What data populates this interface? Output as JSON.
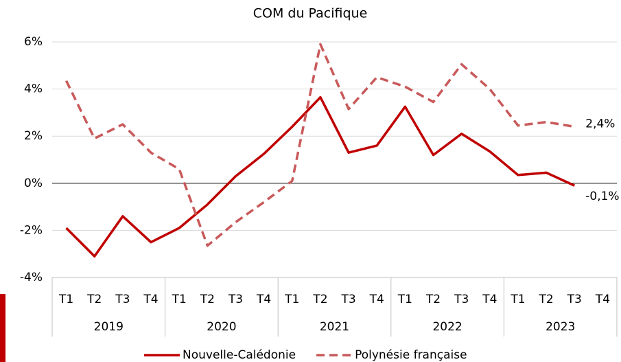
{
  "chart_data": {
    "type": "line",
    "title": "COM du Pacifique",
    "categories": [
      "T1",
      "T2",
      "T3",
      "T4",
      "T1",
      "T2",
      "T3",
      "T4",
      "T1",
      "T2",
      "T3",
      "T4",
      "T1",
      "T2",
      "T3",
      "T4",
      "T1",
      "T2",
      "T3",
      "T4"
    ],
    "groups": [
      "2019",
      "2020",
      "2021",
      "2022",
      "2023"
    ],
    "series": [
      {
        "name": "Nouvelle-Calédonie",
        "color": "#c00000",
        "dashed": false,
        "values": [
          -1.9,
          -3.1,
          -1.4,
          -2.5,
          -1.9,
          -0.9,
          0.3,
          1.25,
          2.4,
          3.65,
          1.3,
          1.6,
          3.25,
          1.2,
          2.1,
          1.35,
          0.35,
          0.45,
          -0.1,
          null
        ],
        "value_labels": [
          null,
          null,
          null,
          null,
          null,
          null,
          null,
          null,
          null,
          null,
          null,
          null,
          null,
          null,
          null,
          null,
          null,
          null,
          "-0,1%",
          null
        ]
      },
      {
        "name": "Polynésie française",
        "color": "#c9595a",
        "dashed": true,
        "values": [
          4.35,
          1.9,
          2.5,
          1.3,
          0.6,
          -2.65,
          -1.65,
          -0.8,
          0.1,
          5.9,
          3.15,
          4.5,
          4.1,
          3.45,
          5.05,
          4.0,
          2.45,
          2.6,
          2.4,
          null
        ],
        "value_labels": [
          null,
          null,
          null,
          null,
          null,
          null,
          null,
          null,
          null,
          null,
          null,
          null,
          null,
          null,
          null,
          null,
          null,
          null,
          "2,4%",
          null
        ]
      }
    ],
    "ylim": [
      -4,
      6
    ],
    "yticks": [
      {
        "value": -4,
        "label": "-4%"
      },
      {
        "value": -2,
        "label": "-2%"
      },
      {
        "value": 0,
        "label": "0%"
      },
      {
        "value": 2,
        "label": "2%"
      },
      {
        "value": 4,
        "label": "4%"
      },
      {
        "value": 6,
        "label": "6%"
      }
    ],
    "grid": true,
    "legend": "bottom"
  }
}
